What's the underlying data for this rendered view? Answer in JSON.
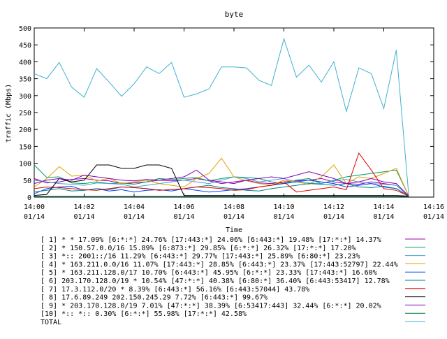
{
  "chart_data": {
    "type": "line",
    "title": "byte",
    "xlabel": "Time",
    "ylabel": "traffic (Mbps)",
    "ylim": [
      0,
      500
    ],
    "yticks": [
      0,
      50,
      100,
      150,
      200,
      250,
      300,
      350,
      400,
      450,
      500
    ],
    "xlim": [
      "01/14 14:00",
      "01/14 14:16"
    ],
    "xticks": [
      {
        "time": "14:00",
        "date": "01/14"
      },
      {
        "time": "14:02",
        "date": "01/14"
      },
      {
        "time": "14:04",
        "date": "01/14"
      },
      {
        "time": "14:06",
        "date": "01/14"
      },
      {
        "time": "14:08",
        "date": "01/14"
      },
      {
        "time": "14:10",
        "date": "01/14"
      },
      {
        "time": "14:12",
        "date": "01/14"
      },
      {
        "time": "14:14",
        "date": "01/14"
      },
      {
        "time": "14:16",
        "date": "01/14"
      }
    ],
    "grid": false,
    "legend_position": "bottom",
    "x": [
      "14:00:00",
      "14:00:30",
      "14:01:00",
      "14:01:30",
      "14:02:00",
      "14:02:30",
      "14:03:00",
      "14:03:30",
      "14:04:00",
      "14:04:30",
      "14:05:00",
      "14:05:30",
      "14:06:00",
      "14:06:30",
      "14:07:00",
      "14:07:30",
      "14:08:00",
      "14:08:30",
      "14:09:00",
      "14:09:30",
      "14:10:00",
      "14:10:30",
      "14:11:00",
      "14:11:30",
      "14:12:00",
      "14:12:30",
      "14:13:00",
      "14:13:30",
      "14:14:00",
      "14:14:30",
      "14:15:00"
    ],
    "series": [
      {
        "name": "[ 1] * * 17.09%  [6:*:*] 24.76% [17:443:*] 24.06% [6:443:*] 19.48% [17:*:*] 14.37%",
        "color": "#a000a0",
        "values": [
          55,
          42,
          45,
          52,
          55,
          50,
          48,
          40,
          42,
          45,
          50,
          48,
          50,
          55,
          48,
          40,
          45,
          50,
          42,
          40,
          45,
          48,
          50,
          55,
          45,
          40,
          38,
          45,
          40,
          35,
          3
        ]
      },
      {
        "name": "[ 2] * 150.57.0.0/16 15.89%  [6:873:*] 29.85% [6:*:*] 26.32% [17:*:*] 17.20%",
        "color": "#00a060",
        "values": [
          95,
          58,
          60,
          42,
          40,
          45,
          40,
          42,
          38,
          45,
          55,
          52,
          55,
          58,
          48,
          55,
          60,
          58,
          55,
          45,
          40,
          50,
          55,
          40,
          50,
          60,
          65,
          70,
          75,
          80,
          3
        ]
      },
      {
        "name": "[ 3] *:: 2001::/16 11.29%  [6:443:*] 29.77% [17:443:*] 25.89% [6:80:*] 23.23%",
        "color": "#40a0e0",
        "values": [
          50,
          45,
          40,
          38,
          35,
          42,
          40,
          38,
          30,
          35,
          40,
          45,
          50,
          45,
          40,
          50,
          60,
          55,
          45,
          50,
          55,
          45,
          42,
          40,
          48,
          52,
          45,
          40,
          38,
          35,
          3
        ]
      },
      {
        "name": "[ 4] * 163.211.0.0/16 11.07%  [17:443:*] 28.85% [6:443:*] 23.37% [17:443:52797] 22.44%",
        "color": "#e0a000",
        "values": [
          30,
          55,
          90,
          62,
          65,
          48,
          55,
          40,
          45,
          50,
          40,
          35,
          30,
          55,
          70,
          115,
          60,
          48,
          40,
          35,
          50,
          45,
          38,
          60,
          95,
          40,
          60,
          55,
          70,
          85,
          3
        ]
      },
      {
        "name": "[ 5] * 163.211.128.0/17 10.70%  [6:443:*] 45.95% [6:*:*] 23.33% [17:443:*] 16.60%",
        "color": "#0040ff",
        "values": [
          10,
          25,
          30,
          32,
          20,
          25,
          18,
          22,
          15,
          20,
          22,
          18,
          25,
          20,
          15,
          18,
          22,
          25,
          30,
          35,
          40,
          45,
          50,
          45,
          40,
          30,
          35,
          40,
          30,
          25,
          3
        ]
      },
      {
        "name": "[ 6] 203.170.128.0/19 * 10.54%  [47:*:*] 40.38% [6:80:*] 36.40% [6:443:53417] 12.78%",
        "color": "#008080",
        "values": [
          15,
          20,
          25,
          18,
          20,
          25,
          22,
          30,
          28,
          25,
          20,
          22,
          25,
          30,
          35,
          28,
          25,
          20,
          18,
          25,
          30,
          35,
          40,
          38,
          35,
          40,
          30,
          28,
          32,
          25,
          3
        ]
      },
      {
        "name": "[ 7] 17.3.112.0/20 * 8.39%  [6:443:*] 56.16% [6:443:57044] 43.78%",
        "color": "#e00000",
        "values": [
          25,
          30,
          28,
          25,
          22,
          20,
          25,
          30,
          28,
          25,
          20,
          22,
          25,
          30,
          28,
          25,
          20,
          22,
          30,
          35,
          45,
          15,
          20,
          25,
          30,
          22,
          130,
          80,
          25,
          20,
          3
        ]
      },
      {
        "name": "[ 8] 17.6.89.249 202.150.245.29 7.72%  [6:443:*] 99.67%",
        "color": "#000000",
        "values": [
          5,
          8,
          55,
          45,
          50,
          95,
          95,
          85,
          85,
          95,
          95,
          85,
          5,
          5,
          5,
          5,
          5,
          5,
          5,
          5,
          5,
          5,
          5,
          5,
          5,
          5,
          5,
          5,
          5,
          5,
          3
        ]
      },
      {
        "name": "[ 9] * 203.170.128.0/19 7.01%  [47:*:*] 38.39% [6:53417:443] 32.44% [6:*:*] 20.02%",
        "color": "#8000c0",
        "values": [
          40,
          50,
          55,
          50,
          65,
          60,
          55,
          50,
          48,
          52,
          50,
          55,
          60,
          80,
          50,
          45,
          40,
          50,
          55,
          60,
          55,
          65,
          75,
          65,
          55,
          40,
          45,
          55,
          45,
          40,
          3
        ]
      },
      {
        "name": "[10] *:: *:: 0.30%  [6:*:*] 55.98% [17:*:*] 42.58%",
        "color": "#008040",
        "values": [
          2,
          2,
          2,
          2,
          2,
          2,
          2,
          2,
          2,
          2,
          2,
          2,
          2,
          2,
          2,
          2,
          2,
          2,
          2,
          2,
          2,
          2,
          2,
          2,
          2,
          2,
          2,
          2,
          2,
          2,
          2
        ]
      },
      {
        "name": "TOTAL",
        "color": "#40b0d0",
        "values": [
          365,
          350,
          398,
          325,
          295,
          380,
          340,
          298,
          335,
          385,
          365,
          398,
          295,
          305,
          320,
          385,
          385,
          382,
          345,
          330,
          468,
          355,
          390,
          340,
          400,
          253,
          382,
          365,
          262,
          435,
          3
        ]
      }
    ]
  }
}
